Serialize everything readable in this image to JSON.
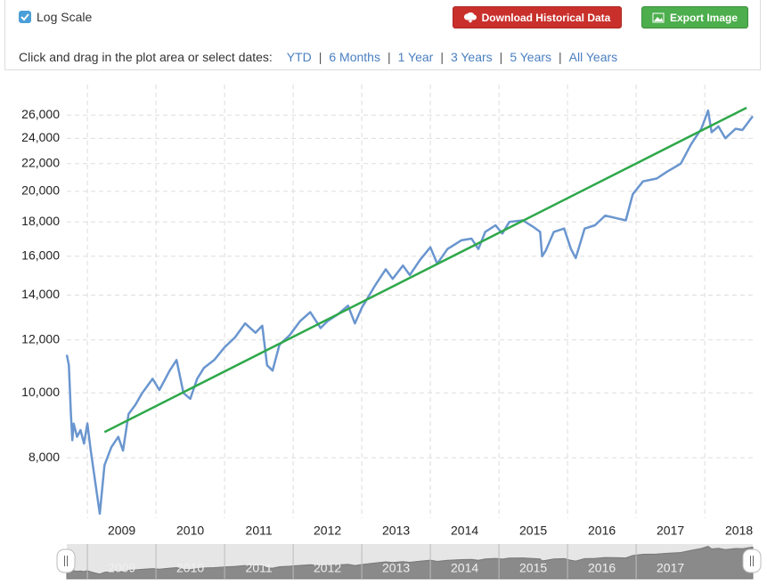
{
  "ui": {
    "log_scale_label": "Log Scale",
    "log_scale_checked": true,
    "download_button": "Download Historical Data",
    "export_button": "Export Image",
    "range_prompt": "Click and drag in the plot area or select dates:",
    "range_links": [
      "YTD",
      "6 Months",
      "1 Year",
      "3 Years",
      "5 Years",
      "All Years"
    ],
    "separator": "|"
  },
  "chart_data": {
    "type": "line",
    "log_scale": true,
    "grid": true,
    "xlim": [
      2008.7,
      2018.7
    ],
    "xticks": [
      2009,
      2010,
      2011,
      2012,
      2013,
      2014,
      2015,
      2016,
      2017,
      2018
    ],
    "ylim": [
      6500,
      28000
    ],
    "yticks": [
      {
        "value": 8000,
        "label": "8,000"
      },
      {
        "value": 10000,
        "label": "10,000"
      },
      {
        "value": 12000,
        "label": "12,000"
      },
      {
        "value": 14000,
        "label": "14,000"
      },
      {
        "value": 16000,
        "label": "16,000"
      },
      {
        "value": 18000,
        "label": "18,000"
      },
      {
        "value": 20000,
        "label": "20,000"
      },
      {
        "value": 22000,
        "label": "22,000"
      },
      {
        "value": 24000,
        "label": "24,000"
      },
      {
        "value": 26000,
        "label": "26,000"
      }
    ],
    "series": [
      {
        "color": "#6a96cf",
        "x": [
          2008.7,
          2008.73,
          2008.76,
          2008.78,
          2008.8,
          2008.85,
          2008.9,
          2008.95,
          2009.0,
          2009.05,
          2009.12,
          2009.18,
          2009.25,
          2009.35,
          2009.45,
          2009.52,
          2009.6,
          2009.7,
          2009.8,
          2009.95,
          2010.05,
          2010.2,
          2010.3,
          2010.4,
          2010.5,
          2010.6,
          2010.7,
          2010.85,
          2011.0,
          2011.15,
          2011.3,
          2011.45,
          2011.55,
          2011.62,
          2011.7,
          2011.8,
          2011.95,
          2012.1,
          2012.25,
          2012.4,
          2012.5,
          2012.65,
          2012.8,
          2012.9,
          2013.0,
          2013.2,
          2013.35,
          2013.45,
          2013.6,
          2013.7,
          2013.85,
          2014.0,
          2014.1,
          2014.25,
          2014.45,
          2014.6,
          2014.7,
          2014.8,
          2014.95,
          2015.05,
          2015.15,
          2015.35,
          2015.5,
          2015.6,
          2015.63,
          2015.68,
          2015.8,
          2015.95,
          2016.05,
          2016.12,
          2016.25,
          2016.4,
          2016.55,
          2016.75,
          2016.85,
          2016.95,
          2017.1,
          2017.3,
          2017.45,
          2017.65,
          2017.8,
          2017.95,
          2018.05,
          2018.1,
          2018.2,
          2018.3,
          2018.45,
          2018.55,
          2018.7
        ],
        "values": [
          11400,
          11000,
          9300,
          8500,
          9000,
          8600,
          8800,
          8400,
          9000,
          8200,
          7300,
          6600,
          7800,
          8300,
          8600,
          8200,
          9300,
          9600,
          10000,
          10500,
          10100,
          10800,
          11200,
          10000,
          9800,
          10500,
          10900,
          11200,
          11700,
          12100,
          12700,
          12300,
          12600,
          11000,
          10800,
          11800,
          12200,
          12800,
          13200,
          12500,
          12800,
          13100,
          13500,
          12700,
          13400,
          14500,
          15300,
          14800,
          15500,
          15000,
          15800,
          16500,
          15600,
          16400,
          16900,
          17000,
          16400,
          17400,
          17800,
          17300,
          18000,
          18100,
          17700,
          17400,
          16000,
          16300,
          17400,
          17600,
          16400,
          15900,
          17600,
          17800,
          18400,
          18200,
          18100,
          19800,
          20700,
          20900,
          21400,
          22000,
          23500,
          24800,
          26400,
          24500,
          25000,
          24000,
          24800,
          24700,
          25900
        ]
      },
      {
        "color": "#2ea84a",
        "x": [
          2009.25,
          2018.61
        ],
        "values": [
          8740,
          26660
        ]
      }
    ]
  }
}
